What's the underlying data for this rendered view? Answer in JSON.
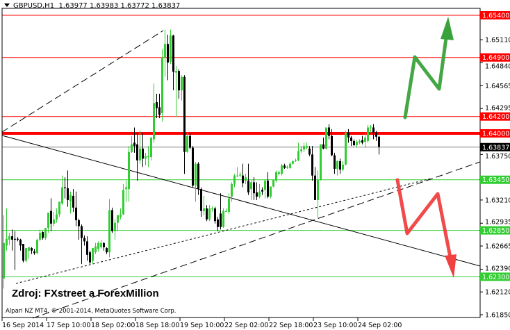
{
  "header": {
    "symbol": "GBPUSD,H1",
    "ohlc": "1.63977 1.63983 1.63772 1.63837"
  },
  "annotations": {
    "source": "Zdroj: FXstreet a ForexMillion",
    "copyright": "Alpari NZ MT4, © 2001-2014, MetaQuotes Software Corp."
  },
  "colors": {
    "bull": "#32cd32",
    "bear": "#000000",
    "resistance": "#ff0000",
    "support": "#32cd32",
    "current_price": "#808080",
    "up_arrow": "#3aa23a",
    "down_arrow": "#f04040"
  },
  "chart_data": {
    "type": "candlestick",
    "symbol": "GBPUSD",
    "timeframe": "H1",
    "ylim": [
      1.6185,
      1.6554
    ],
    "grid": false,
    "x_tick_labels": [
      "16 Sep 2014",
      "17 Sep 10:00",
      "18 Sep 02:00",
      "18 Sep 18:00",
      "19 Sep 10:00",
      "22 Sep 02:00",
      "22 Sep 18:00",
      "23 Sep 10:00",
      "24 Sep 02:00"
    ],
    "x_tick_bar_index": [
      0,
      16,
      32,
      48,
      64,
      80,
      96,
      112,
      128
    ],
    "y_tick_labels": [
      "1.65110",
      "1.64840",
      "1.64565",
      "1.64295",
      "1.63750",
      "1.63210",
      "1.62935",
      "1.62665",
      "1.62390",
      "1.62120",
      "1.61850"
    ],
    "candles_ohlc": [
      [
        1.6228,
        1.6303,
        1.6216,
        1.627
      ],
      [
        1.6267,
        1.6311,
        1.6261,
        1.6275
      ],
      [
        1.6274,
        1.6282,
        1.6268,
        1.6278
      ],
      [
        1.6278,
        1.6286,
        1.6261,
        1.6274
      ],
      [
        1.6275,
        1.6284,
        1.6238,
        1.6274
      ],
      [
        1.6275,
        1.6277,
        1.6272,
        1.6274
      ],
      [
        1.6274,
        1.6275,
        1.6261,
        1.6267
      ],
      [
        1.6269,
        1.6269,
        1.6247,
        1.6249
      ],
      [
        1.6249,
        1.6264,
        1.6247,
        1.6264
      ],
      [
        1.6261,
        1.6265,
        1.6251,
        1.6265
      ],
      [
        1.6264,
        1.6265,
        1.6257,
        1.6261
      ],
      [
        1.626,
        1.6263,
        1.6256,
        1.6258
      ],
      [
        1.6258,
        1.6275,
        1.6257,
        1.6274
      ],
      [
        1.6274,
        1.6286,
        1.6272,
        1.6282
      ],
      [
        1.6283,
        1.6284,
        1.6274,
        1.6276
      ],
      [
        1.6276,
        1.6288,
        1.6274,
        1.6288
      ],
      [
        1.6288,
        1.6306,
        1.6282,
        1.6306
      ],
      [
        1.6308,
        1.6323,
        1.6284,
        1.6293
      ],
      [
        1.6293,
        1.6307,
        1.629,
        1.6298
      ],
      [
        1.6298,
        1.6311,
        1.6294,
        1.6304
      ],
      [
        1.6304,
        1.6319,
        1.6301,
        1.6319
      ],
      [
        1.6317,
        1.635,
        1.6315,
        1.6336
      ],
      [
        1.6336,
        1.6348,
        1.6323,
        1.6335
      ],
      [
        1.6335,
        1.6356,
        1.6313,
        1.6321
      ],
      [
        1.6319,
        1.6331,
        1.6305,
        1.6327
      ],
      [
        1.6326,
        1.6334,
        1.6307,
        1.6312
      ],
      [
        1.6312,
        1.6331,
        1.629,
        1.6297
      ],
      [
        1.6297,
        1.6299,
        1.6274,
        1.629
      ],
      [
        1.629,
        1.6292,
        1.6245,
        1.6276
      ],
      [
        1.6276,
        1.6279,
        1.6267,
        1.6272
      ],
      [
        1.6272,
        1.6278,
        1.6249,
        1.6256
      ],
      [
        1.6259,
        1.6261,
        1.6245,
        1.6247
      ],
      [
        1.6249,
        1.6264,
        1.6245,
        1.6264
      ],
      [
        1.6259,
        1.627,
        1.6257,
        1.6266
      ],
      [
        1.6263,
        1.6272,
        1.626,
        1.627
      ],
      [
        1.6265,
        1.6274,
        1.6263,
        1.627
      ],
      [
        1.627,
        1.6271,
        1.6261,
        1.6265
      ],
      [
        1.6264,
        1.6265,
        1.6257,
        1.6259
      ],
      [
        1.6259,
        1.6322,
        1.6253,
        1.6309
      ],
      [
        1.6309,
        1.6312,
        1.6282,
        1.6284
      ],
      [
        1.6284,
        1.6298,
        1.6274,
        1.6294
      ],
      [
        1.6294,
        1.6303,
        1.6284,
        1.6303
      ],
      [
        1.6301,
        1.6311,
        1.6298,
        1.6304
      ],
      [
        1.6304,
        1.634,
        1.6303,
        1.6333
      ],
      [
        1.6334,
        1.6344,
        1.6319,
        1.6336
      ],
      [
        1.6334,
        1.6385,
        1.6319,
        1.6378
      ],
      [
        1.6378,
        1.6397,
        1.6377,
        1.6387
      ],
      [
        1.6389,
        1.6407,
        1.6377,
        1.6385
      ],
      [
        1.6387,
        1.6401,
        1.6344,
        1.6368
      ],
      [
        1.6368,
        1.6403,
        1.6364,
        1.6382
      ],
      [
        1.6382,
        1.64,
        1.636,
        1.637
      ],
      [
        1.637,
        1.6377,
        1.6362,
        1.6373
      ],
      [
        1.6372,
        1.6385,
        1.636,
        1.6373
      ],
      [
        1.6372,
        1.6395,
        1.6368,
        1.6395
      ],
      [
        1.6393,
        1.6459,
        1.6389,
        1.6436
      ],
      [
        1.6437,
        1.6447,
        1.6418,
        1.643
      ],
      [
        1.6431,
        1.6447,
        1.6418,
        1.6422
      ],
      [
        1.6424,
        1.65,
        1.6414,
        1.649
      ],
      [
        1.649,
        1.6523,
        1.6467,
        1.6506
      ],
      [
        1.6506,
        1.6517,
        1.6463,
        1.6484
      ],
      [
        1.6485,
        1.6523,
        1.6482,
        1.6516
      ],
      [
        1.6516,
        1.6517,
        1.6451,
        1.6473
      ],
      [
        1.6472,
        1.648,
        1.642,
        1.6474
      ],
      [
        1.6474,
        1.6476,
        1.6441,
        1.6451
      ],
      [
        1.6451,
        1.6469,
        1.6439,
        1.6467
      ],
      [
        1.6467,
        1.6469,
        1.6352,
        1.6378
      ],
      [
        1.6378,
        1.6401,
        1.6377,
        1.6397
      ],
      [
        1.6397,
        1.64,
        1.6381,
        1.6383
      ],
      [
        1.6383,
        1.6385,
        1.6336,
        1.6338
      ],
      [
        1.6338,
        1.6366,
        1.6319,
        1.6364
      ],
      [
        1.6364,
        1.6366,
        1.6327,
        1.6334
      ],
      [
        1.6334,
        1.6336,
        1.6301,
        1.6308
      ],
      [
        1.6308,
        1.6326,
        1.6303,
        1.6311
      ],
      [
        1.6311,
        1.6315,
        1.6296,
        1.6298
      ],
      [
        1.6298,
        1.6315,
        1.6296,
        1.6311
      ],
      [
        1.631,
        1.6314,
        1.6307,
        1.6311
      ],
      [
        1.6311,
        1.6313,
        1.6293,
        1.6296
      ],
      [
        1.6298,
        1.6301,
        1.6284,
        1.6289
      ],
      [
        1.6305,
        1.6329,
        1.6286,
        1.6289
      ],
      [
        1.6289,
        1.6311,
        1.6288,
        1.6308
      ],
      [
        1.6307,
        1.6311,
        1.6307,
        1.6308
      ],
      [
        1.6307,
        1.6329,
        1.6304,
        1.6323
      ],
      [
        1.6325,
        1.6342,
        1.6319,
        1.634
      ],
      [
        1.634,
        1.6352,
        1.6336,
        1.635
      ],
      [
        1.635,
        1.636,
        1.6348,
        1.635
      ],
      [
        1.635,
        1.6354,
        1.6348,
        1.6351
      ],
      [
        1.635,
        1.6364,
        1.6336,
        1.6341
      ],
      [
        1.6344,
        1.6352,
        1.634,
        1.6348
      ],
      [
        1.6344,
        1.6364,
        1.6327,
        1.633
      ],
      [
        1.6334,
        1.6345,
        1.6321,
        1.6342
      ],
      [
        1.6342,
        1.6348,
        1.6321,
        1.6329
      ],
      [
        1.633,
        1.6342,
        1.6321,
        1.6325
      ],
      [
        1.6325,
        1.634,
        1.6323,
        1.6331
      ],
      [
        1.6333,
        1.6336,
        1.6327,
        1.6331
      ],
      [
        1.6333,
        1.6345,
        1.6323,
        1.6344
      ],
      [
        1.6344,
        1.6354,
        1.6323,
        1.6325
      ],
      [
        1.6325,
        1.6337,
        1.6323,
        1.6337
      ],
      [
        1.6337,
        1.6345,
        1.6336,
        1.6345
      ],
      [
        1.6344,
        1.6356,
        1.6342,
        1.6354
      ],
      [
        1.6352,
        1.6356,
        1.635,
        1.6354
      ],
      [
        1.6352,
        1.6364,
        1.635,
        1.6362
      ],
      [
        1.6362,
        1.6364,
        1.6358,
        1.6359
      ],
      [
        1.6359,
        1.6362,
        1.6358,
        1.636
      ],
      [
        1.6359,
        1.6366,
        1.6358,
        1.6364
      ],
      [
        1.6364,
        1.6368,
        1.6363,
        1.6367
      ],
      [
        1.6367,
        1.637,
        1.6366,
        1.6368
      ],
      [
        1.6368,
        1.6389,
        1.6367,
        1.6379
      ],
      [
        1.6379,
        1.6385,
        1.6377,
        1.6381
      ],
      [
        1.6381,
        1.6389,
        1.6378,
        1.6385
      ],
      [
        1.6383,
        1.6389,
        1.6381,
        1.6385
      ],
      [
        1.6382,
        1.6385,
        1.6373,
        1.6375
      ],
      [
        1.6375,
        1.6385,
        1.6344,
        1.635
      ],
      [
        1.635,
        1.636,
        1.6321,
        1.6321
      ],
      [
        1.6321,
        1.6356,
        1.63,
        1.6345
      ],
      [
        1.6345,
        1.6387,
        1.6344,
        1.6387
      ],
      [
        1.6387,
        1.6395,
        1.6381,
        1.6382
      ],
      [
        1.6382,
        1.6407,
        1.6381,
        1.6407
      ],
      [
        1.6407,
        1.6411,
        1.6393,
        1.6397
      ],
      [
        1.6397,
        1.6405,
        1.6373,
        1.6374
      ],
      [
        1.6374,
        1.6377,
        1.6352,
        1.6358
      ],
      [
        1.6358,
        1.6368,
        1.635,
        1.6367
      ],
      [
        1.6367,
        1.637,
        1.6352,
        1.6357
      ],
      [
        1.6357,
        1.6367,
        1.6355,
        1.6363
      ],
      [
        1.6363,
        1.6403,
        1.6362,
        1.6401
      ],
      [
        1.6401,
        1.6405,
        1.6389,
        1.6395
      ],
      [
        1.6395,
        1.6397,
        1.6385,
        1.6391
      ],
      [
        1.6391,
        1.6393,
        1.6385,
        1.6386
      ],
      [
        1.6386,
        1.6392,
        1.6383,
        1.639
      ],
      [
        1.6389,
        1.6393,
        1.6387,
        1.6391
      ],
      [
        1.6392,
        1.6397,
        1.6387,
        1.6389
      ],
      [
        1.639,
        1.6401,
        1.6383,
        1.6395
      ],
      [
        1.6391,
        1.641,
        1.6389,
        1.6407
      ],
      [
        1.6407,
        1.641,
        1.6401,
        1.6408
      ],
      [
        1.6407,
        1.6411,
        1.6393,
        1.6401
      ],
      [
        1.6401,
        1.6403,
        1.6391,
        1.6396
      ],
      [
        1.6396,
        1.6397,
        1.6375,
        1.6384
      ]
    ],
    "horizontal_levels": [
      {
        "price": 1.654,
        "label": "1.65400",
        "kind": "resistance",
        "bold": false
      },
      {
        "price": 1.649,
        "label": "1.64900",
        "kind": "resistance",
        "bold": false
      },
      {
        "price": 1.642,
        "label": "1.64200",
        "kind": "resistance",
        "bold": false
      },
      {
        "price": 1.64,
        "label": "1.64000",
        "kind": "resistance",
        "bold": true
      },
      {
        "price": 1.6345,
        "label": "1.63450",
        "kind": "support",
        "bold": false
      },
      {
        "price": 1.6285,
        "label": "1.62850",
        "kind": "support",
        "bold": false
      },
      {
        "price": 1.623,
        "label": "1.62300",
        "kind": "support",
        "bold": false
      }
    ],
    "current_price": {
      "price": 1.63837,
      "label": "1.63837"
    }
  }
}
